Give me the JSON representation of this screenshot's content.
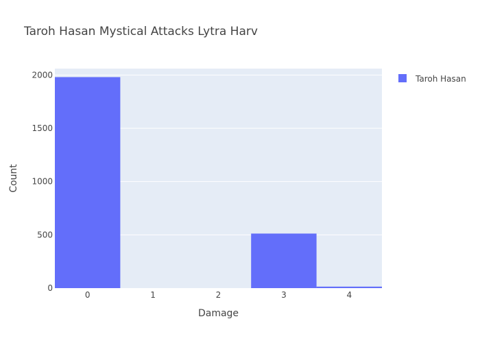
{
  "chart_data": {
    "type": "bar",
    "title": "Taroh Hasan Mystical Attacks Lytra Harv",
    "xlabel": "Damage",
    "ylabel": "Count",
    "categories": [
      "0",
      "1",
      "2",
      "3",
      "4"
    ],
    "series": [
      {
        "name": "Taroh Hasan",
        "values": [
          1980,
          0,
          0,
          512,
          14
        ],
        "color": "#636efa"
      }
    ],
    "ylim": [
      0,
      2060
    ],
    "yticks": [
      0,
      500,
      1000,
      1500,
      2000
    ],
    "grid": true,
    "legend": "top-right",
    "plot_bgcolor": "#e5ecf6"
  }
}
